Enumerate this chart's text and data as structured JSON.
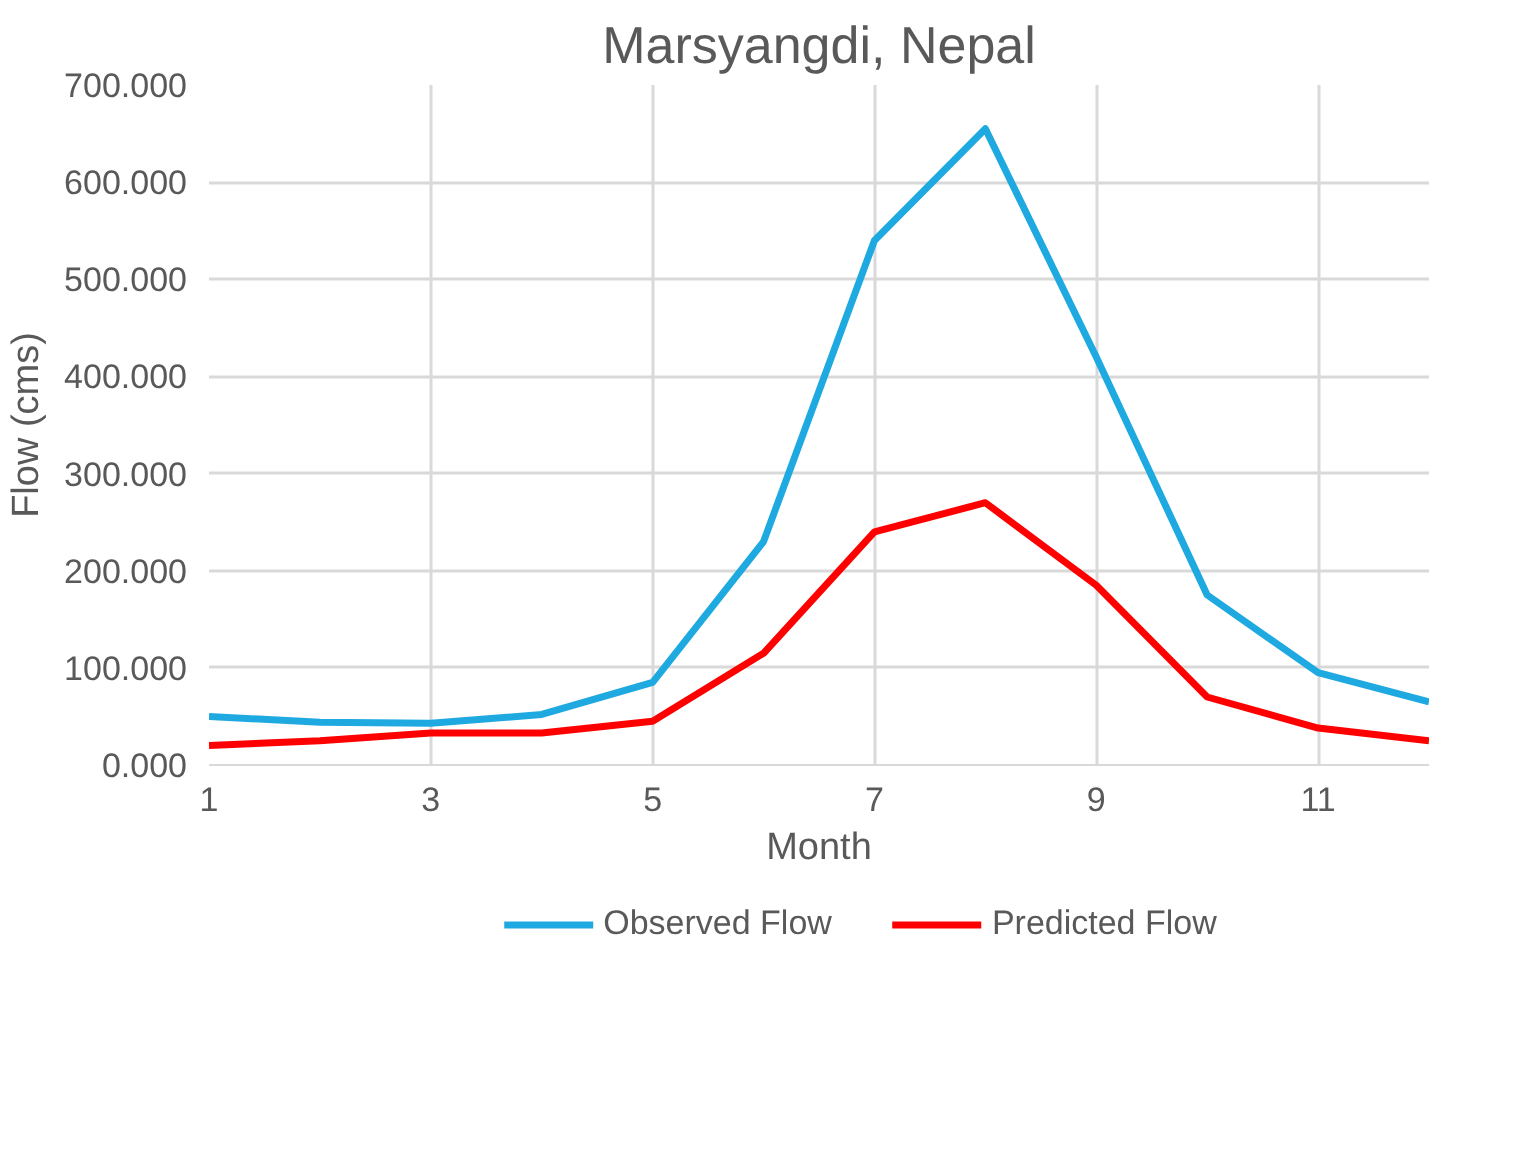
{
  "chart_data": {
    "type": "line",
    "title": "Marsyangdi, Nepal",
    "xlabel": "Month",
    "ylabel": "Flow (cms)",
    "x": [
      1,
      2,
      3,
      4,
      5,
      6,
      7,
      8,
      9,
      10,
      11,
      12
    ],
    "series": [
      {
        "name": "Observed Flow",
        "color": "#1fa9e1",
        "values": [
          50,
          44,
          43,
          52,
          85,
          230,
          540,
          655,
          420,
          175,
          95,
          65
        ]
      },
      {
        "name": "Predicted Flow",
        "color": "#ff0000",
        "values": [
          20,
          25,
          33,
          33,
          45,
          115,
          240,
          270,
          185,
          70,
          38,
          25
        ]
      }
    ],
    "xlim": [
      1,
      12
    ],
    "xticks": [
      1,
      3,
      5,
      7,
      9,
      11
    ],
    "ylim": [
      0,
      700
    ],
    "yticks": [
      {
        "value": 0,
        "label": "0.000"
      },
      {
        "value": 100,
        "label": "100.000"
      },
      {
        "value": 200,
        "label": "200.000"
      },
      {
        "value": 300,
        "label": "300.000"
      },
      {
        "value": 400,
        "label": "400.000"
      },
      {
        "value": 500,
        "label": "500.000"
      },
      {
        "value": 600,
        "label": "600.000"
      },
      {
        "value": 700,
        "label": "700.000"
      }
    ],
    "grid": true,
    "legend": "bottom",
    "marker": "none",
    "line_style": "solid"
  }
}
